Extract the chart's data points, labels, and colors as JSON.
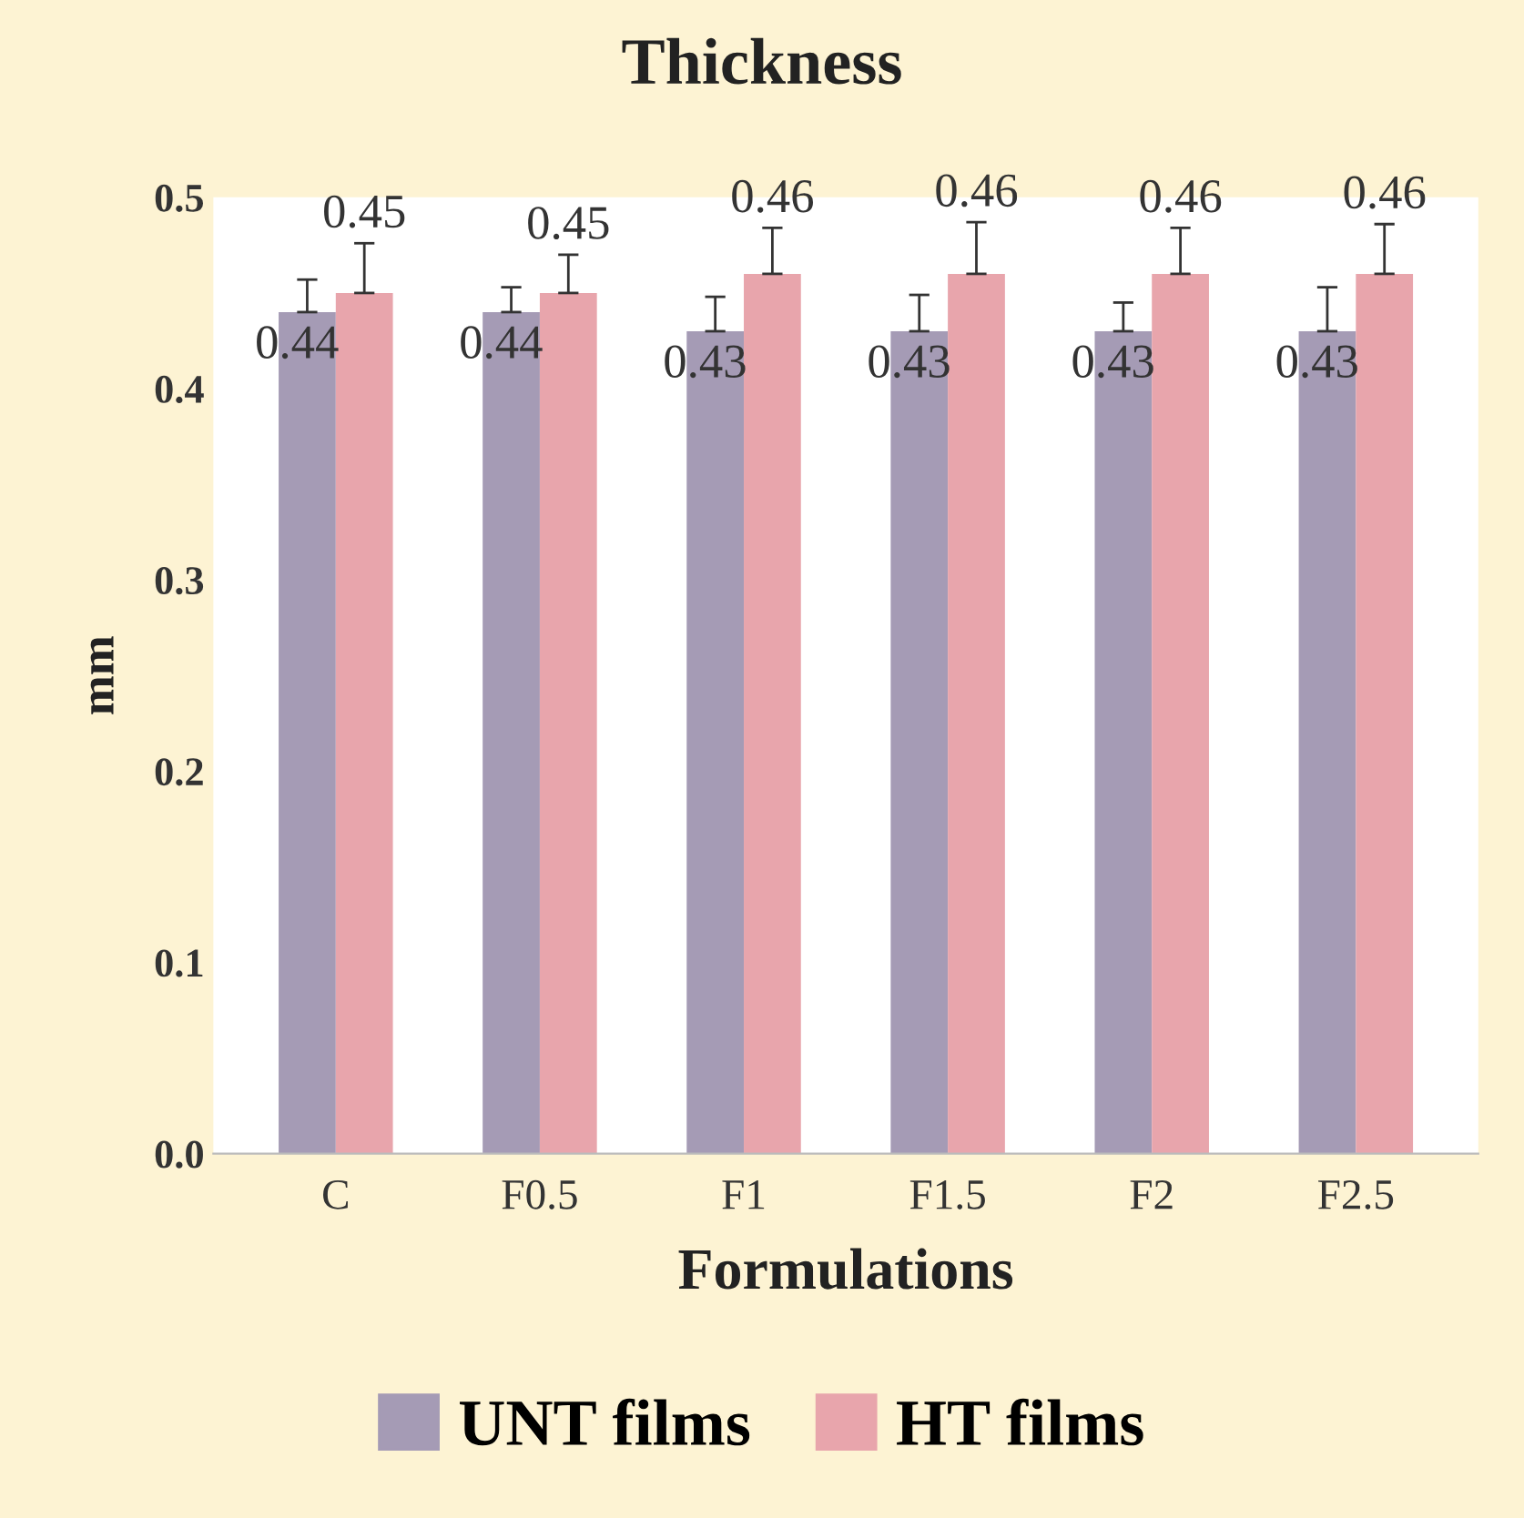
{
  "chart_data": {
    "type": "bar",
    "title": "Thickness",
    "xlabel": "Formulations",
    "ylabel": "mm",
    "categories": [
      "C",
      "F0.5",
      "F1",
      "F1.5",
      "F2",
      "F2.5"
    ],
    "series": [
      {
        "name": "UNT films",
        "color": "#a59bb5",
        "values": [
          0.44,
          0.44,
          0.43,
          0.43,
          0.43,
          0.43
        ],
        "errors": [
          [
            0.44,
            0.457
          ],
          [
            0.44,
            0.453
          ],
          [
            0.43,
            0.448
          ],
          [
            0.43,
            0.449
          ],
          [
            0.43,
            0.445
          ],
          [
            0.43,
            0.453
          ]
        ]
      },
      {
        "name": "HT films",
        "color": "#e8a5ac",
        "values": [
          0.45,
          0.45,
          0.46,
          0.46,
          0.46,
          0.46
        ],
        "errors": [
          [
            0.45,
            0.476
          ],
          [
            0.45,
            0.47
          ],
          [
            0.46,
            0.484
          ],
          [
            0.46,
            0.487
          ],
          [
            0.46,
            0.484
          ],
          [
            0.46,
            0.486
          ]
        ]
      }
    ],
    "ylim": [
      0,
      0.5
    ],
    "yticks": [
      {
        "value": 0,
        "label": "0.0"
      },
      {
        "value": 0.1,
        "label": "0.1"
      },
      {
        "value": 0.2,
        "label": "0.2"
      },
      {
        "value": 0.3,
        "label": "0.3"
      },
      {
        "value": 0.4,
        "label": "0.4"
      },
      {
        "value": 0.5,
        "label": "0.5"
      }
    ],
    "data_labels": true,
    "grid": false,
    "legend": "bottom"
  }
}
